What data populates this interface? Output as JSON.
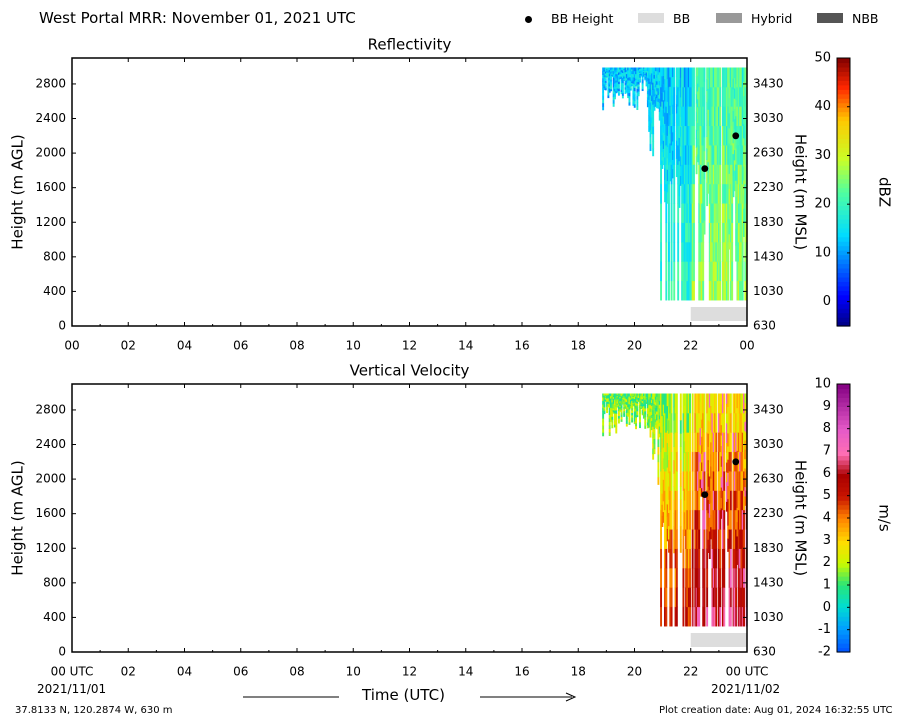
{
  "header": {
    "title": "West Portal MRR:  November 01, 2021 UTC",
    "legend": [
      {
        "label": "BB Height",
        "kind": "dot",
        "color": "#000000"
      },
      {
        "label": "BB",
        "kind": "swatch",
        "color": "#dddddd"
      },
      {
        "label": "Hybrid",
        "kind": "swatch",
        "color": "#999999"
      },
      {
        "label": "NBB",
        "kind": "swatch",
        "color": "#555555"
      }
    ]
  },
  "footer": {
    "location": "37.8133 N, 120.2874 W, 630 m",
    "creation": "Plot creation date: Aug 01, 2024 16:32:55 UTC",
    "xlabel": "Time (UTC)",
    "start_date": "2021/11/01",
    "end_date": "2021/11/02"
  },
  "chart_data": [
    {
      "type": "heatmap",
      "title": "Reflectivity",
      "ylabel": "Height (m AGL)",
      "ylabel_right": "Height (m MSL)",
      "xlim": [
        0,
        24
      ],
      "ylim": [
        0,
        3100
      ],
      "x_ticks": [
        "00",
        "02",
        "04",
        "06",
        "08",
        "10",
        "12",
        "14",
        "16",
        "18",
        "20",
        "22",
        "00"
      ],
      "y_ticks": [
        0,
        400,
        800,
        1200,
        1600,
        2000,
        2400,
        2800
      ],
      "y_ticks_right": [
        "630",
        "1030",
        "1430",
        "1830",
        "2230",
        "2630",
        "3030",
        "3430"
      ],
      "colorbar": {
        "label": "dBZ",
        "min": -5,
        "max": 50,
        "ticks": [
          0,
          10,
          20,
          30,
          40,
          50
        ],
        "colormap": "jet"
      },
      "bb_height_points": [
        {
          "x": 22.5,
          "y": 1820
        },
        {
          "x": 23.6,
          "y": 2200
        }
      ],
      "bb_band": {
        "x": [
          22.0,
          24.0
        ],
        "category": "BB"
      }
    },
    {
      "type": "heatmap",
      "title": "Vertical Velocity",
      "ylabel": "Height (m AGL)",
      "ylabel_right": "Height (m MSL)",
      "xlim": [
        0,
        24
      ],
      "ylim": [
        0,
        3100
      ],
      "x_ticks": [
        "00 UTC",
        "02",
        "04",
        "06",
        "08",
        "10",
        "12",
        "14",
        "16",
        "18",
        "20",
        "22",
        "00 UTC"
      ],
      "y_ticks": [
        0,
        400,
        800,
        1200,
        1600,
        2000,
        2400,
        2800
      ],
      "y_ticks_right": [
        "630",
        "1030",
        "1430",
        "1830",
        "2230",
        "2630",
        "3030",
        "3430"
      ],
      "colorbar": {
        "label": "m/s",
        "min": -2,
        "max": 10,
        "ticks": [
          -2,
          -1,
          0,
          1,
          2,
          3,
          4,
          5,
          6,
          7,
          8,
          9,
          10
        ],
        "colormap": "rainbow"
      },
      "bb_height_points": [
        {
          "x": 22.5,
          "y": 1820
        },
        {
          "x": 23.6,
          "y": 2200
        }
      ],
      "bb_band": {
        "x": [
          22.0,
          24.0
        ],
        "category": "BB"
      }
    }
  ]
}
